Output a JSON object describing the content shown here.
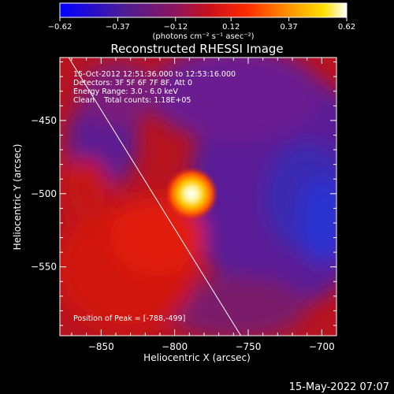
{
  "chart_data": {
    "type": "heatmap",
    "title": "Reconstructed RHESSI Image",
    "xlabel": "Heliocentric X (arcsec)",
    "ylabel": "Heliocentric Y (arcsec)",
    "xlim": [
      -878,
      -690
    ],
    "ylim": [
      -597,
      -407
    ],
    "xticks": [
      -850,
      -800,
      -750,
      -700
    ],
    "yticks": [
      -550,
      -500,
      -450
    ],
    "colorbar": {
      "min": -0.62,
      "max": 0.62,
      "ticks": [
        "-0.62",
        "-0.37",
        "-0.12",
        "0.12",
        "0.37",
        "0.62"
      ],
      "unit_label": "(photons cm⁻² s⁻¹ asec⁻²)"
    },
    "colormap": [
      "#0000ff",
      "#4b1d96",
      "#6a1f9a",
      "#b0173a",
      "#e01a10",
      "#ff7a00",
      "#ffd000",
      "#ffffff"
    ],
    "annotations": [
      "15-Oct-2012 12:51:36.000 to 12:53:16.000",
      "Detectors: 3F 5F 6F 7F 8F, Att 0",
      "Energy Range: 3.0 - 6.0 keV",
      "Clean    Total counts: 1.18E+05"
    ],
    "peak_label": "Position of Peak = [-788,-499]",
    "peak": {
      "x": -788,
      "y": -499
    },
    "limb_line": [
      [
        -872,
        -407
      ],
      [
        -755,
        -597
      ]
    ]
  },
  "footer": {
    "date": "15-May-2022 07:07"
  }
}
